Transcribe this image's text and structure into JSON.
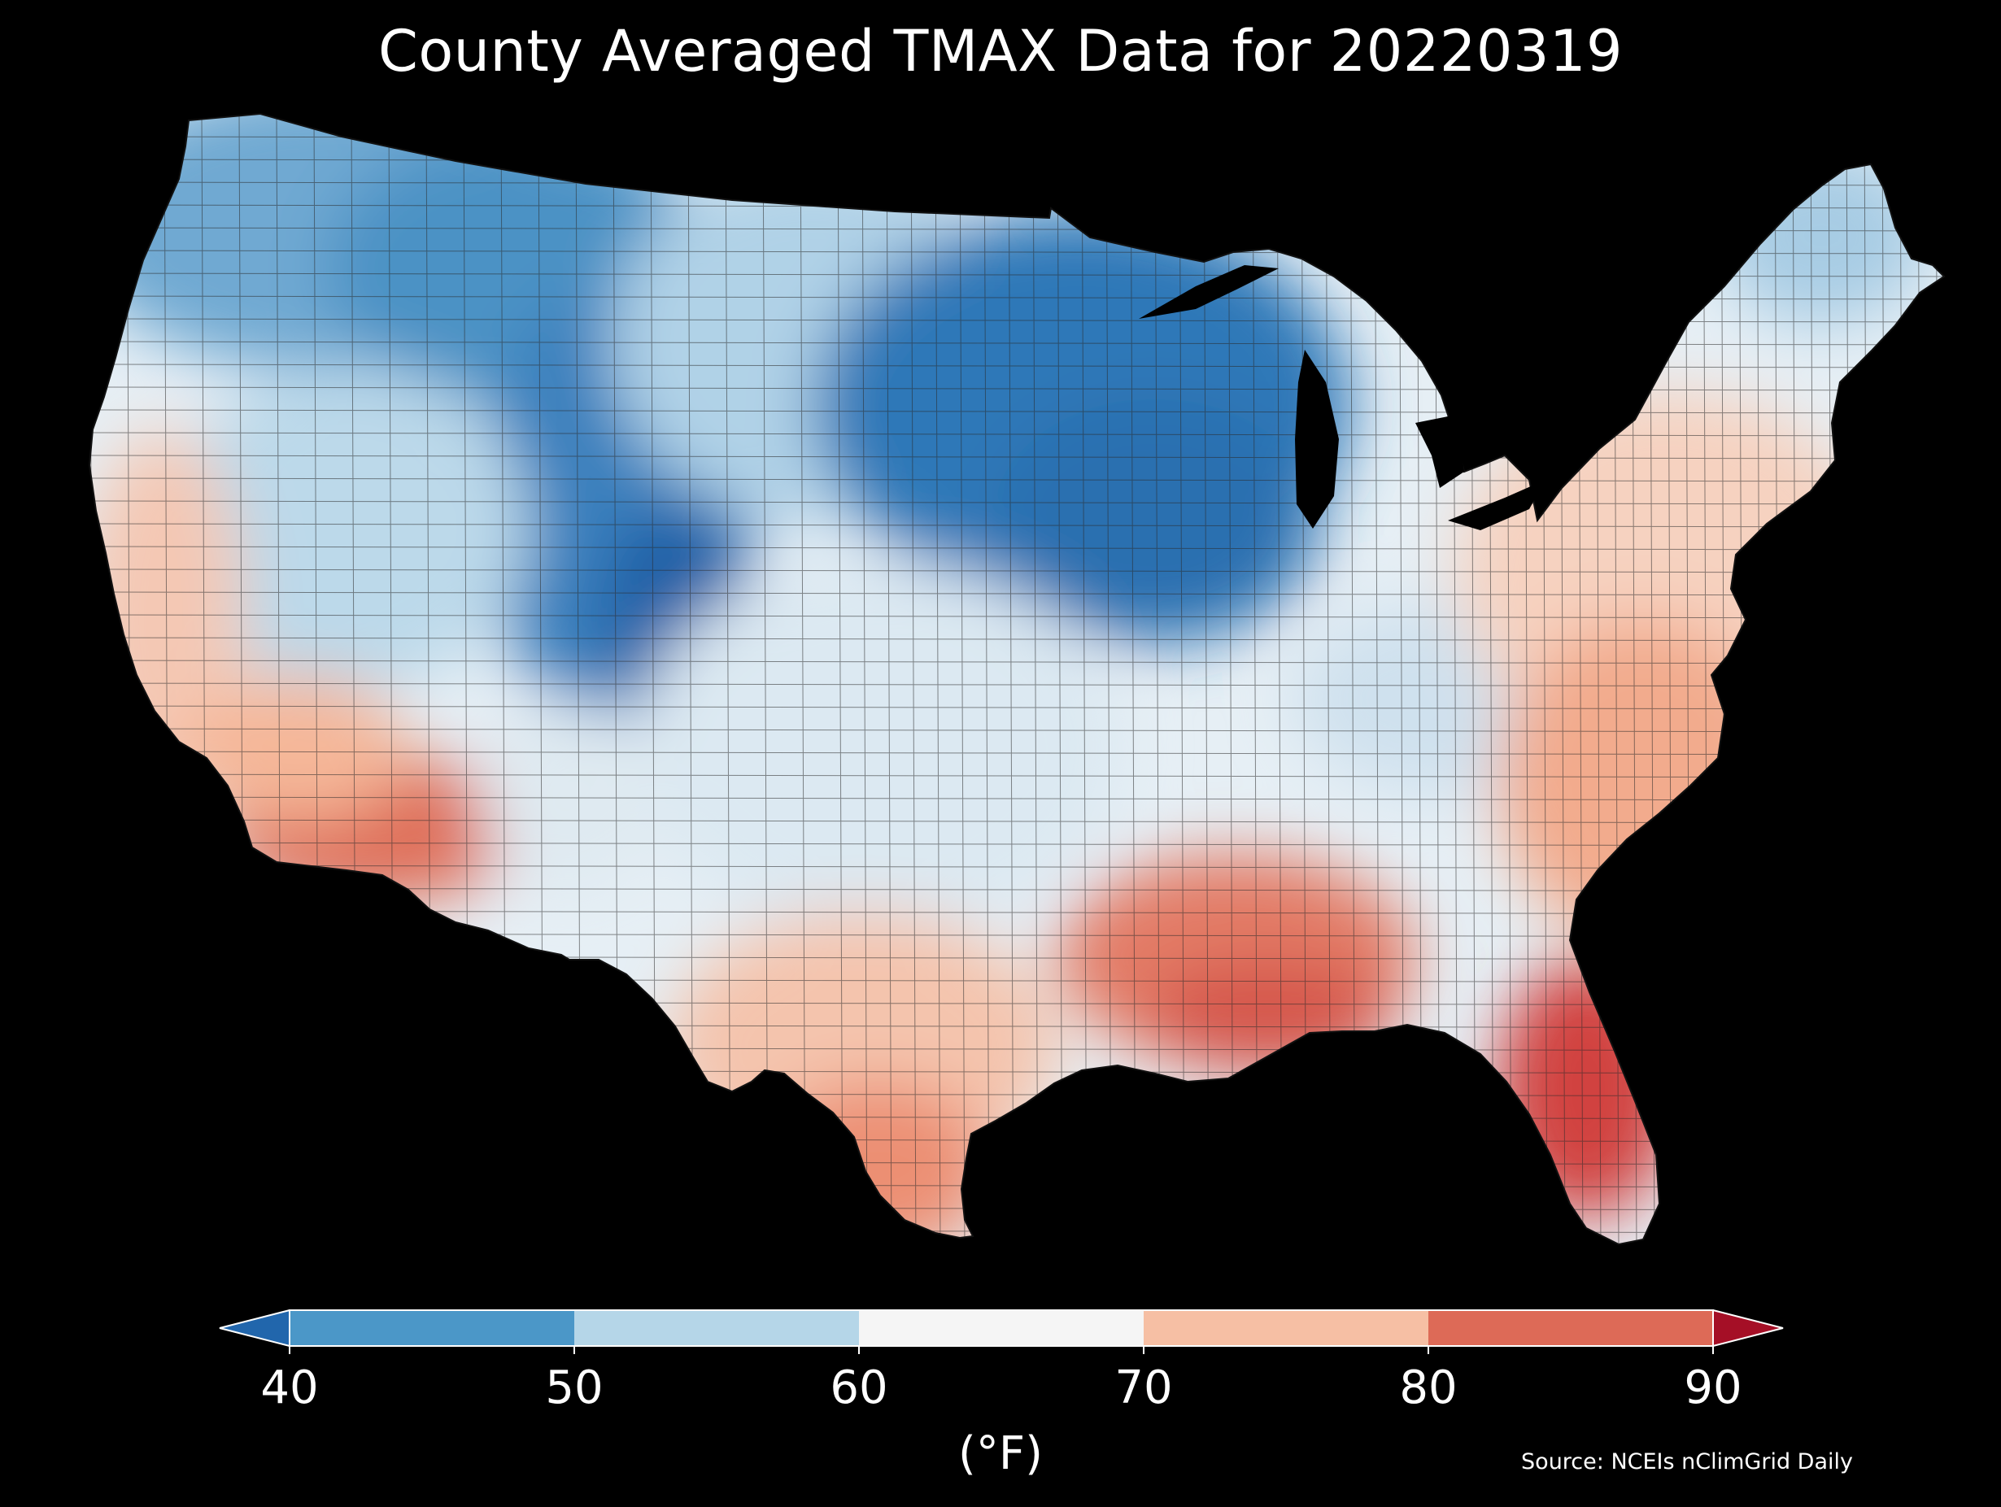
{
  "title": "County Averaged TMAX Data for 20220319",
  "unit": "(°F)",
  "source": "Source: NCEIs nClimGrid Daily",
  "legend": {
    "min": 40,
    "max": 90,
    "ticks": [
      "40",
      "50",
      "60",
      "70",
      "80",
      "90"
    ],
    "under_color": "#2166ac",
    "over_color": "#a50f26",
    "bins": [
      {
        "from": 40,
        "to": 50,
        "color": "#4b97c8"
      },
      {
        "from": 50,
        "to": 60,
        "color": "#b5d6e8"
      },
      {
        "from": 60,
        "to": 70,
        "color": "#f5f5f5"
      },
      {
        "from": 70,
        "to": 80,
        "color": "#f6bfa4"
      },
      {
        "from": 80,
        "to": 90,
        "color": "#dd6a57"
      }
    ]
  },
  "map": {
    "region": "contiguous-united-states",
    "background": "#000000",
    "boundary_color": "#1a1a1a",
    "temperature_palette": [
      "#1f5fa6",
      "#2f78b8",
      "#4b97c8",
      "#87bbd9",
      "#b5d6e8",
      "#d8e8f1",
      "#f0f4f7",
      "#fbe3d6",
      "#f6bfa4",
      "#ef9d7f",
      "#dd6a57",
      "#c43c3c"
    ]
  }
}
